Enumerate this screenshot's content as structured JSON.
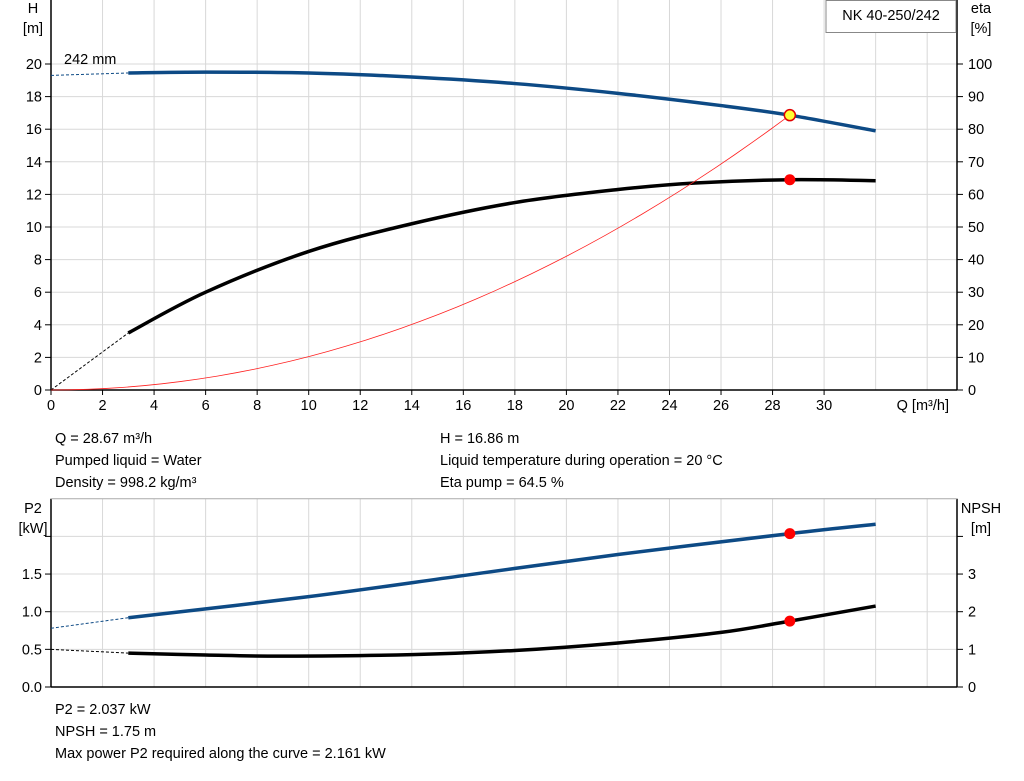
{
  "chart_data": [
    {
      "type": "line",
      "label_box": "NK 40-250/242",
      "curve_label": "242 mm",
      "xlabel": "Q [m³/h]",
      "xlim": [
        0,
        34
      ],
      "xticks": [
        0,
        2,
        4,
        6,
        8,
        10,
        12,
        14,
        16,
        18,
        20,
        22,
        24,
        26,
        28,
        30
      ],
      "ylabel_left": [
        "H",
        "[m]"
      ],
      "ylim_left": [
        0,
        24
      ],
      "yticks_left": [
        0,
        2,
        4,
        6,
        8,
        10,
        12,
        14,
        16,
        18,
        20
      ],
      "ylabel_right": [
        "eta",
        "[%]"
      ],
      "ylim_right": [
        0,
        120
      ],
      "yticks_right": [
        0,
        10,
        20,
        30,
        40,
        50,
        60,
        70,
        80,
        90,
        100
      ],
      "grid": true,
      "series": [
        {
          "key": "H",
          "axis": "left",
          "color": "#0d4a85",
          "x": [
            3,
            6,
            10,
            14,
            18,
            22,
            26,
            28.67,
            32
          ],
          "y": [
            19.45,
            19.5,
            19.45,
            19.2,
            18.8,
            18.2,
            17.45,
            16.86,
            15.9
          ],
          "extrapolated": {
            "x": [
              0,
              3
            ],
            "y": [
              19.3,
              19.45
            ]
          }
        },
        {
          "key": "eta",
          "axis": "right",
          "color": "#000000",
          "x": [
            3,
            6,
            10,
            14,
            18,
            22,
            25,
            28.67,
            32
          ],
          "y": [
            17.5,
            30,
            42.5,
            51,
            57.5,
            61.5,
            63.5,
            64.5,
            64.2
          ],
          "extrapolated": {
            "x": [
              0,
              3
            ],
            "y": [
              0,
              17.5
            ]
          }
        },
        {
          "key": "system",
          "axis": "left",
          "color": "#ff2020",
          "type": "quadratic",
          "x": [
            0,
            4,
            8,
            12,
            16,
            20,
            24,
            28.67
          ],
          "y": [
            0,
            0.33,
            1.31,
            2.95,
            5.25,
            8.2,
            11.81,
            16.86
          ]
        }
      ],
      "duty_points": [
        {
          "series": "H",
          "x": 28.67,
          "y": 16.86,
          "color": "#ffff33"
        },
        {
          "series": "eta",
          "x": 28.67,
          "y": 64.5,
          "color": "#ff0000"
        }
      ]
    },
    {
      "type": "line",
      "xlim": [
        0,
        34
      ],
      "ylabel_left": [
        "P2",
        "[kW]"
      ],
      "ylim_left": [
        0,
        2.5
      ],
      "yticks_left": [
        "0.0",
        "0.5",
        "1.0",
        "1.5",
        ""
      ],
      "ylabel_right": [
        "NPSH",
        "[m]"
      ],
      "ylim_right": [
        0,
        5
      ],
      "yticks_right": [
        "0",
        "1",
        "2",
        "3",
        ""
      ],
      "grid": true,
      "series": [
        {
          "key": "P2",
          "axis": "left",
          "color": "#0d4a85",
          "x": [
            3,
            10,
            16,
            22,
            28.67,
            32
          ],
          "y": [
            0.92,
            1.2,
            1.48,
            1.76,
            2.037,
            2.161
          ],
          "extrapolated": {
            "x": [
              0,
              3
            ],
            "y": [
              0.78,
              0.92
            ]
          }
        },
        {
          "key": "NPSH",
          "axis": "right",
          "color": "#000000",
          "x": [
            3,
            6,
            9,
            14,
            18,
            22,
            26,
            28.67,
            32
          ],
          "y": [
            0.9,
            0.85,
            0.82,
            0.86,
            0.97,
            1.17,
            1.45,
            1.75,
            2.15
          ],
          "extrapolated": {
            "x": [
              0,
              3
            ],
            "y": [
              1.0,
              0.9
            ]
          }
        }
      ],
      "duty_points": [
        {
          "series": "P2",
          "x": 28.67,
          "y": 2.037,
          "color": "#ff0000"
        },
        {
          "series": "NPSH",
          "x": 28.67,
          "y": 1.75,
          "color": "#ff0000"
        }
      ]
    }
  ],
  "info_top": {
    "q": "Q = 28.67 m³/h",
    "liquid": "Pumped liquid = Water",
    "density": "Density = 998.2 kg/m³",
    "h": "H = 16.86 m",
    "temp": "Liquid temperature during operation = 20 °C",
    "eta": "Eta pump = 64.5 %"
  },
  "info_bottom": {
    "p2": "P2 = 2.037 kW",
    "npsh": "NPSH = 1.75 m",
    "max_p2": "Max power P2 required along the curve = 2.161 kW"
  }
}
